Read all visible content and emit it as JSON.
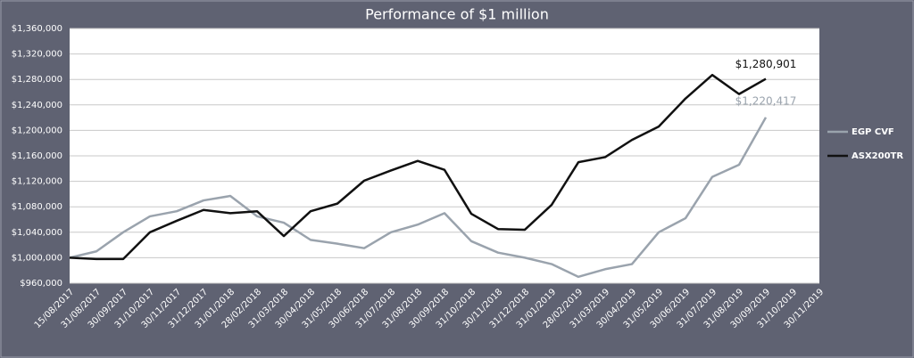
{
  "chart_data": {
    "type": "line",
    "title": "Performance of $1 million",
    "categories": [
      "15/08/2017",
      "31/08/2017",
      "30/09/2017",
      "31/10/2017",
      "30/11/2017",
      "31/12/2017",
      "31/01/2018",
      "28/02/2018",
      "31/03/2018",
      "30/04/2018",
      "31/05/2018",
      "30/06/2018",
      "31/07/2018",
      "31/08/2018",
      "30/09/2018",
      "31/10/2018",
      "30/11/2018",
      "31/12/2018",
      "31/01/2019",
      "28/02/2019",
      "31/03/2019",
      "30/04/2019",
      "31/05/2019",
      "30/06/2019",
      "31/07/2019",
      "31/08/2019",
      "30/09/2019",
      "31/10/2019",
      "30/11/2019"
    ],
    "series": [
      {
        "name": "EGP CVF",
        "color": "#9aa3ad",
        "values": [
          1000000,
          1010000,
          1040000,
          1065000,
          1073000,
          1090000,
          1097000,
          1065000,
          1055000,
          1028000,
          1022000,
          1015000,
          1040000,
          1052000,
          1070000,
          1026000,
          1008000,
          1000000,
          990000,
          970000,
          982000,
          990000,
          1040000,
          1062000,
          1127000,
          1146000,
          1220417,
          null,
          null
        ],
        "value_labels": [
          null,
          null,
          null,
          null,
          null,
          null,
          null,
          null,
          null,
          null,
          null,
          null,
          null,
          null,
          null,
          null,
          null,
          null,
          null,
          null,
          null,
          null,
          null,
          null,
          null,
          null,
          "$1,220,417",
          null,
          null
        ]
      },
      {
        "name": "ASX200TR",
        "color": "#111111",
        "values": [
          1000000,
          998000,
          998000,
          1040000,
          1058000,
          1075000,
          1070000,
          1073000,
          1034000,
          1073000,
          1085000,
          1121000,
          1137000,
          1152000,
          1138000,
          1069000,
          1045000,
          1044000,
          1083000,
          1150000,
          1158000,
          1185000,
          1206000,
          1250000,
          1287000,
          1257000,
          1280901,
          null,
          null
        ],
        "value_labels": [
          null,
          null,
          null,
          null,
          null,
          null,
          null,
          null,
          null,
          null,
          null,
          null,
          null,
          null,
          null,
          null,
          null,
          null,
          null,
          null,
          null,
          null,
          null,
          null,
          null,
          null,
          "$1,280,901",
          null,
          null
        ]
      }
    ],
    "ylim": [
      960000,
      1360000
    ],
    "yticks": [
      {
        "value": 960000,
        "label": "$960,000"
      },
      {
        "value": 1000000,
        "label": "$1,000,000"
      },
      {
        "value": 1040000,
        "label": "$1,040,000"
      },
      {
        "value": 1080000,
        "label": "$1,080,000"
      },
      {
        "value": 1120000,
        "label": "$1,120,000"
      },
      {
        "value": 1160000,
        "label": "$1,160,000"
      },
      {
        "value": 1200000,
        "label": "$1,200,000"
      },
      {
        "value": 1240000,
        "label": "$1,240,000"
      },
      {
        "value": 1280000,
        "label": "$1,280,000"
      },
      {
        "value": 1320000,
        "label": "$1,320,000"
      },
      {
        "value": 1360000,
        "label": "$1,360,000"
      }
    ],
    "grid": true,
    "legend": "right"
  }
}
